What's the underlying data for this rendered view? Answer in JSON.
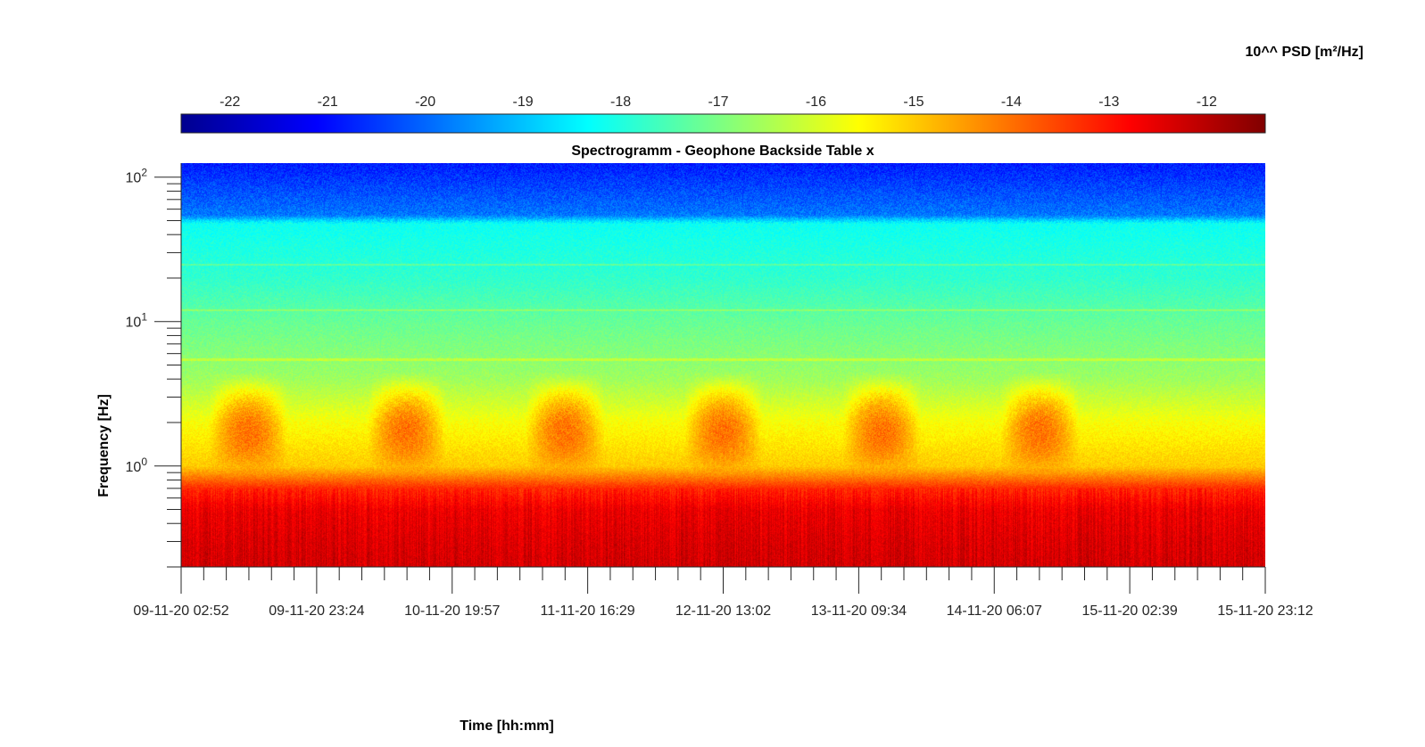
{
  "chart_data": {
    "type": "heatmap",
    "title": "Spectrogramm - Geophone Backside Table x",
    "xlabel": "Time [hh:mm]",
    "ylabel": "Frequency [Hz]",
    "colorbar_label": "10^^ PSD [m²/Hz]",
    "colorbar_ticks": [
      -22,
      -21,
      -20,
      -19,
      -18,
      -17,
      -16,
      -15,
      -14,
      -13,
      -12
    ],
    "colorbar_range": [
      -22.5,
      -11.4
    ],
    "colormap": "jet",
    "y_scale": "log",
    "ylim_hz": [
      0.2,
      125
    ],
    "y_ticks": [
      {
        "value": 1,
        "base": "10",
        "exp": "0"
      },
      {
        "value": 10,
        "base": "10",
        "exp": "1"
      },
      {
        "value": 100,
        "base": "10",
        "exp": "2"
      }
    ],
    "x_ticks": [
      "09-11-20 02:52",
      "09-11-20 23:24",
      "10-11-20 19:57",
      "11-11-20 16:29",
      "12-11-20 13:02",
      "13-11-20 09:34",
      "14-11-20 06:07",
      "15-11-20 02:39",
      "15-11-20 23:12"
    ],
    "x_minor_ticks_per_interval": 5,
    "psd_log10_profile": [
      {
        "freq_hz": 0.2,
        "psd": -12.3
      },
      {
        "freq_hz": 0.3,
        "psd": -12.4
      },
      {
        "freq_hz": 0.5,
        "psd": -12.6
      },
      {
        "freq_hz": 0.7,
        "psd": -13.2
      },
      {
        "freq_hz": 1.0,
        "psd": -15.0
      },
      {
        "freq_hz": 2.0,
        "psd": -15.6
      },
      {
        "freq_hz": 4.0,
        "psd": -16.6
      },
      {
        "freq_hz": 10,
        "psd": -17.2
      },
      {
        "freq_hz": 20,
        "psd": -17.8
      },
      {
        "freq_hz": 48,
        "psd": -18.2
      },
      {
        "freq_hz": 55,
        "psd": -19.8
      },
      {
        "freq_hz": 125,
        "psd": -20.8
      }
    ],
    "daytime_bursts": [
      {
        "start": "09-11-20 07:00",
        "end": "09-11-20 19:00",
        "psd_increase": 1.6
      },
      {
        "start": "10-11-20 07:00",
        "end": "10-11-20 19:00",
        "psd_increase": 1.6
      },
      {
        "start": "11-11-20 07:00",
        "end": "11-11-20 19:00",
        "psd_increase": 1.6
      },
      {
        "start": "12-11-20 07:00",
        "end": "12-11-20 19:00",
        "psd_increase": 1.6
      },
      {
        "start": "13-11-20 07:00",
        "end": "13-11-20 19:00",
        "psd_increase": 1.6
      },
      {
        "start": "14-11-20 07:00",
        "end": "14-11-20 19:00",
        "psd_increase": 1.6
      }
    ]
  }
}
